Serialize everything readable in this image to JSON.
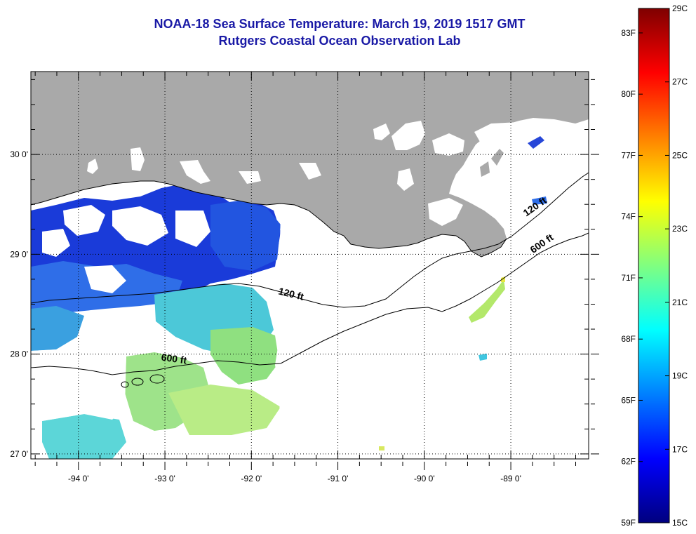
{
  "title": {
    "line1": "NOAA-18 Sea Surface Temperature:  March 19, 2019 1517 GMT",
    "line2": "Rutgers Coastal Ocean Observation Lab"
  },
  "map": {
    "lon_range": [
      -94.55,
      -88.1
    ],
    "lat_range": [
      26.95,
      30.83
    ],
    "land_color": "#a9a9a9",
    "cloud_color": "#ffffff",
    "lon_ticks": [
      {
        "value": -94,
        "label": "-94 0'"
      },
      {
        "value": -93,
        "label": "-93 0'"
      },
      {
        "value": -92,
        "label": "-92 0'"
      },
      {
        "value": -91,
        "label": "-91 0'"
      },
      {
        "value": -90,
        "label": "-90 0'"
      },
      {
        "value": -89,
        "label": "-89 0'"
      }
    ],
    "lat_ticks": [
      {
        "value": 30,
        "label": "30 0'"
      },
      {
        "value": 29,
        "label": "29 0'"
      },
      {
        "value": 28,
        "label": "28 0'"
      },
      {
        "value": 27,
        "label": "27 0'"
      }
    ],
    "contour_labels": [
      {
        "text": "120 ft",
        "lon": -91.55,
        "lat": 28.57
      },
      {
        "text": "600 ft",
        "lon": -92.9,
        "lat": 27.92
      },
      {
        "text": "120 ft",
        "lon": -88.7,
        "lat": 29.45
      },
      {
        "text": "600 ft",
        "lon": -88.62,
        "lat": 29.08
      }
    ]
  },
  "colorbar": {
    "min_c": 15,
    "max_c": 29,
    "celsius_labels": [
      "29C",
      "27C",
      "25C",
      "23C",
      "21C",
      "19C",
      "17C",
      "15C"
    ],
    "fahrenheit_labels": [
      "83F",
      "80F",
      "77F",
      "74F",
      "71F",
      "68F",
      "65F",
      "62F",
      "59F"
    ],
    "colors": [
      "#00007f",
      "#0000ff",
      "#0080ff",
      "#00ffff",
      "#80ff80",
      "#ffff00",
      "#ff8000",
      "#ff0000",
      "#7f0000"
    ]
  }
}
